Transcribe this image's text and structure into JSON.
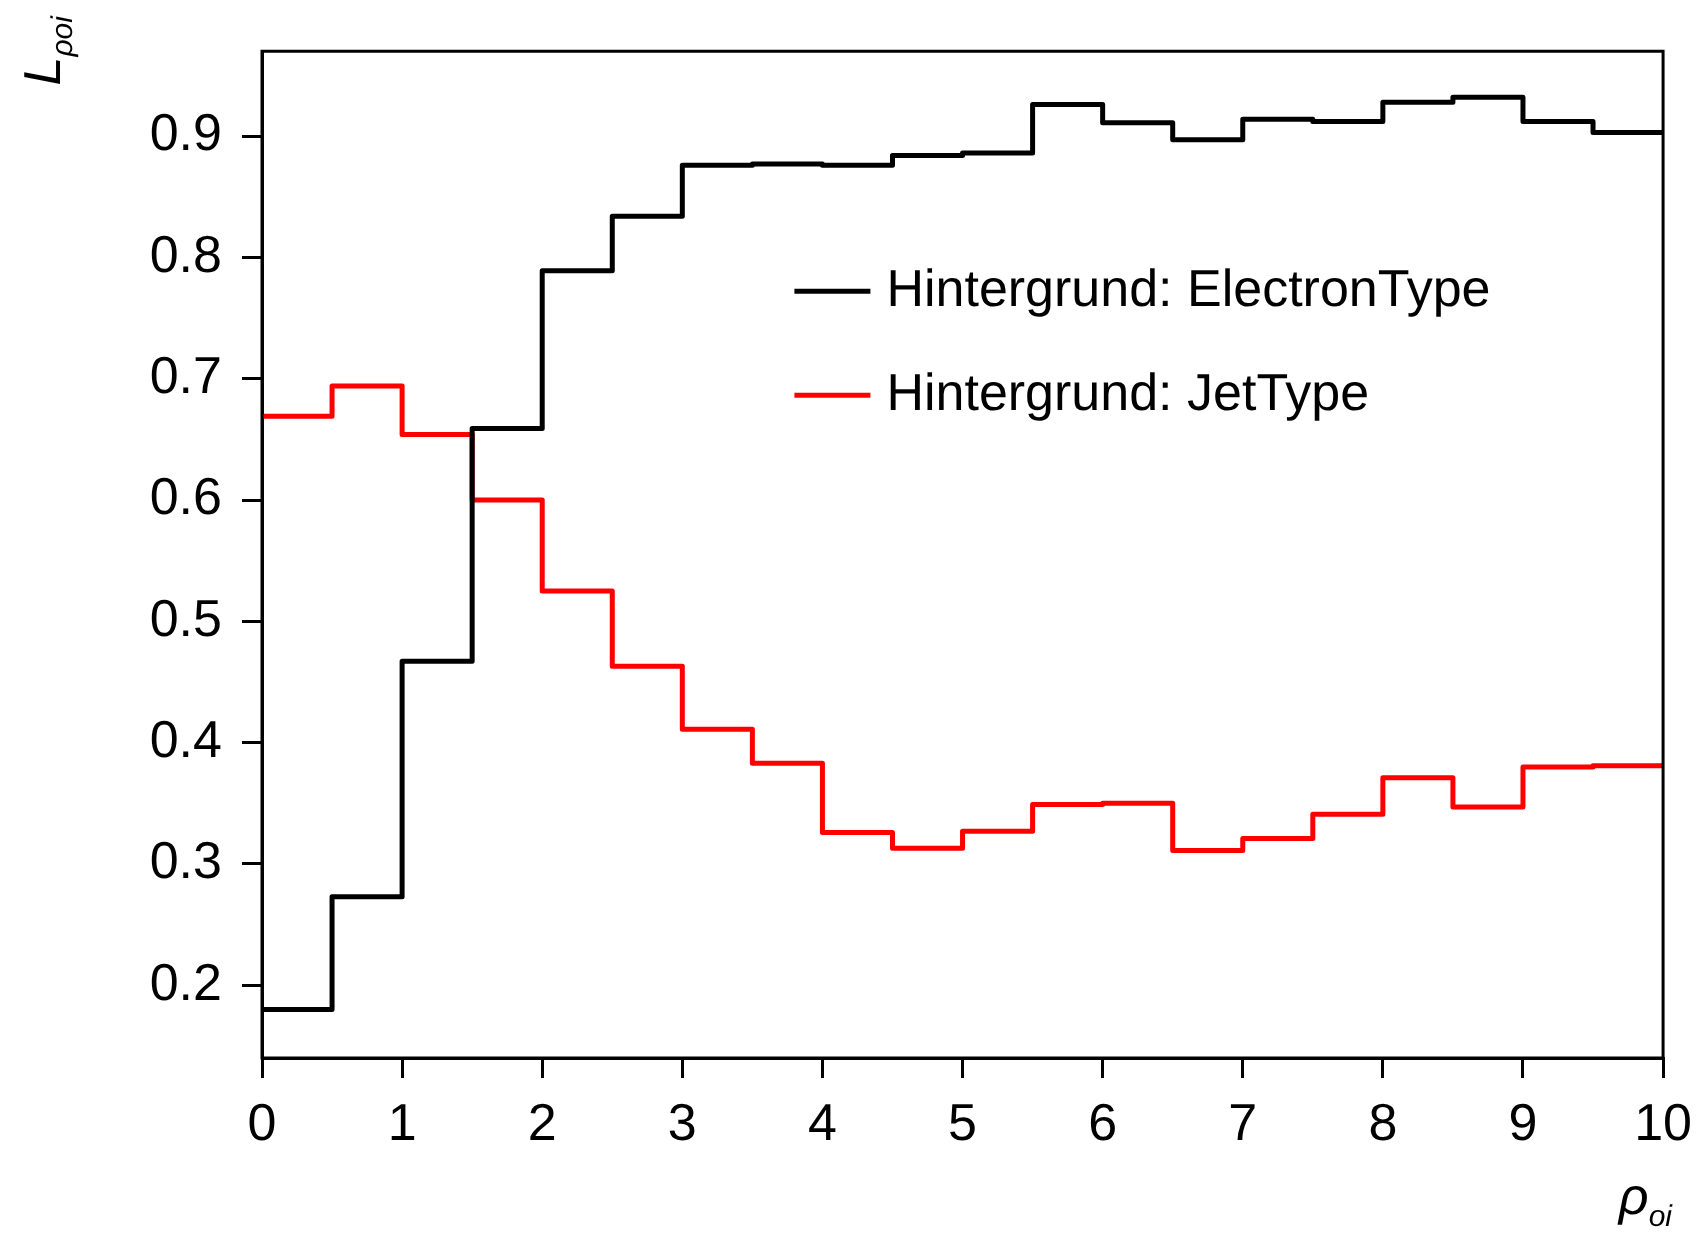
{
  "chart_data": {
    "type": "histogram",
    "xlabel": "ρ$_{oi}$",
    "ylabel": "L$_{ρ}$$_{oi}$",
    "bins": [
      0,
      0.5,
      1,
      1.5,
      2,
      2.5,
      3,
      3.5,
      4,
      4.5,
      5,
      5.5,
      6,
      6.5,
      7,
      7.5,
      8,
      8.5,
      9,
      9.5,
      10
    ],
    "series": [
      {
        "name": "Hintergrund: ElectronType",
        "color": "#000000",
        "values": [
          0.18,
          0.273,
          0.467,
          0.659,
          0.789,
          0.834,
          0.876,
          0.877,
          0.876,
          0.884,
          0.886,
          0.926,
          0.911,
          0.897,
          0.914,
          0.912,
          0.928,
          0.932,
          0.912,
          0.903
        ]
      },
      {
        "name": "Hintergrund: JetType",
        "color": "#ff0000",
        "values": [
          0.669,
          0.694,
          0.654,
          0.6,
          0.525,
          0.463,
          0.411,
          0.383,
          0.326,
          0.313,
          0.327,
          0.349,
          0.35,
          0.311,
          0.321,
          0.341,
          0.371,
          0.347,
          0.38,
          0.381
        ]
      }
    ],
    "xlim": [
      0,
      10
    ],
    "xticks": [
      0,
      1,
      2,
      3,
      4,
      5,
      6,
      7,
      8,
      9,
      10
    ],
    "ylim": [
      0.14,
      0.97
    ],
    "yticks": [
      0.2,
      0.3,
      0.4,
      0.5,
      0.6,
      0.7,
      0.8,
      0.9
    ],
    "legend": "top right"
  }
}
